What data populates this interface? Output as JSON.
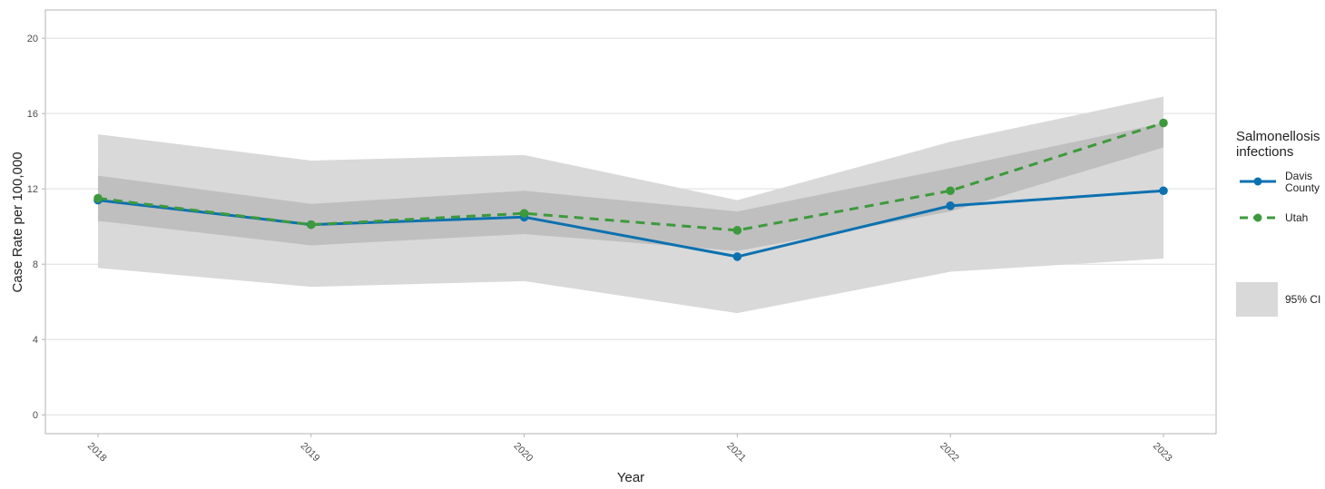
{
  "chart_data": {
    "type": "line",
    "xlabel": "Year",
    "ylabel": "Case Rate per 100,000",
    "x": [
      "2018",
      "2019",
      "2020",
      "2021",
      "2022",
      "2023"
    ],
    "ylim": [
      -1,
      21.5
    ],
    "yticks": [
      0,
      4,
      8,
      12,
      16,
      20
    ],
    "grid": true,
    "legend": {
      "position": "right",
      "title": "Salmonellosis infections",
      "ci_label": "95% CI"
    },
    "series": [
      {
        "name": "Davis County",
        "color": "#0C71B0",
        "dash": "solid",
        "values": [
          11.4,
          10.1,
          10.5,
          8.4,
          11.1,
          11.9
        ],
        "ci_lower": [
          7.8,
          6.8,
          7.1,
          5.4,
          7.6,
          8.3
        ],
        "ci_upper": [
          14.9,
          13.5,
          13.8,
          11.4,
          14.5,
          16.9
        ],
        "ci_color": "#D9D9D9"
      },
      {
        "name": "Utah",
        "color": "#3D9A3C",
        "dash": "dashed",
        "values": [
          11.5,
          10.1,
          10.7,
          9.8,
          11.9,
          15.5
        ],
        "ci_lower": [
          10.3,
          9.0,
          9.6,
          8.7,
          10.8,
          14.2
        ],
        "ci_upper": [
          12.7,
          11.2,
          11.9,
          10.8,
          13.1,
          15.5
        ],
        "ci_color": "#BFBFBF"
      }
    ]
  }
}
